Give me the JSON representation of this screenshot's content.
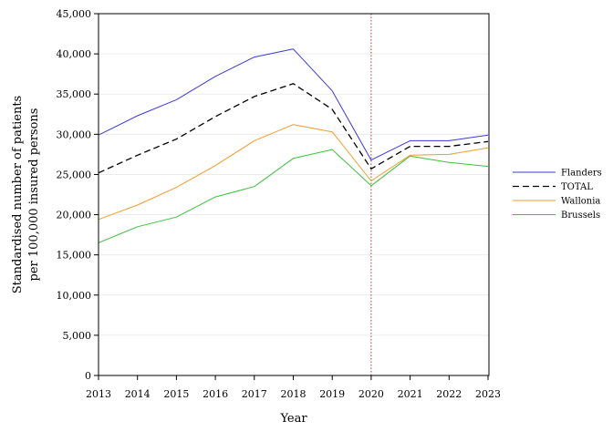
{
  "chart_data": {
    "type": "line",
    "title": "",
    "xlabel": "Year",
    "ylabel_lines": [
      "Standardised number of patients",
      "per 100,000 insured persons"
    ],
    "x": [
      2013,
      2014,
      2015,
      2016,
      2017,
      2018,
      2019,
      2020,
      2021,
      2022,
      2023
    ],
    "x_tick_labels": [
      "2013",
      "2014",
      "2015",
      "2016",
      "2017",
      "2018",
      "2019",
      "2020",
      "2021",
      "2022",
      "2023"
    ],
    "ylim": [
      0,
      45000
    ],
    "y_ticks": [
      0,
      5000,
      10000,
      15000,
      20000,
      25000,
      30000,
      35000,
      40000,
      45000
    ],
    "y_tick_labels": [
      "0",
      "5,000",
      "10,000",
      "15,000",
      "20,000",
      "25,000",
      "30,000",
      "35,000",
      "40,000",
      "45,000"
    ],
    "grid": "horizontal",
    "reference_line": {
      "x": 2020,
      "color": "#c0392b",
      "style": "dotted"
    },
    "legend_position": "right",
    "series": [
      {
        "name": "Flanders",
        "color": "#3a3adb",
        "dash": "solid",
        "values": [
          29900,
          32300,
          34300,
          37200,
          39600,
          40600,
          35400,
          26800,
          29200,
          29200,
          29900
        ]
      },
      {
        "name": "TOTAL",
        "color": "#000000",
        "dash": "dashed",
        "values": [
          25200,
          27400,
          29400,
          32200,
          34700,
          36300,
          33100,
          25700,
          28500,
          28500,
          29100
        ]
      },
      {
        "name": "Wallonia",
        "color": "#f39a2b",
        "dash": "solid",
        "values": [
          19400,
          21200,
          23400,
          26100,
          29200,
          31200,
          30300,
          24200,
          27400,
          27500,
          28300
        ]
      },
      {
        "name": "Brussels",
        "color": "#3fbf3f",
        "dash": "solid",
        "values": [
          16500,
          18500,
          19700,
          22200,
          23500,
          27000,
          28100,
          23600,
          27300,
          26500,
          26000
        ]
      }
    ]
  }
}
